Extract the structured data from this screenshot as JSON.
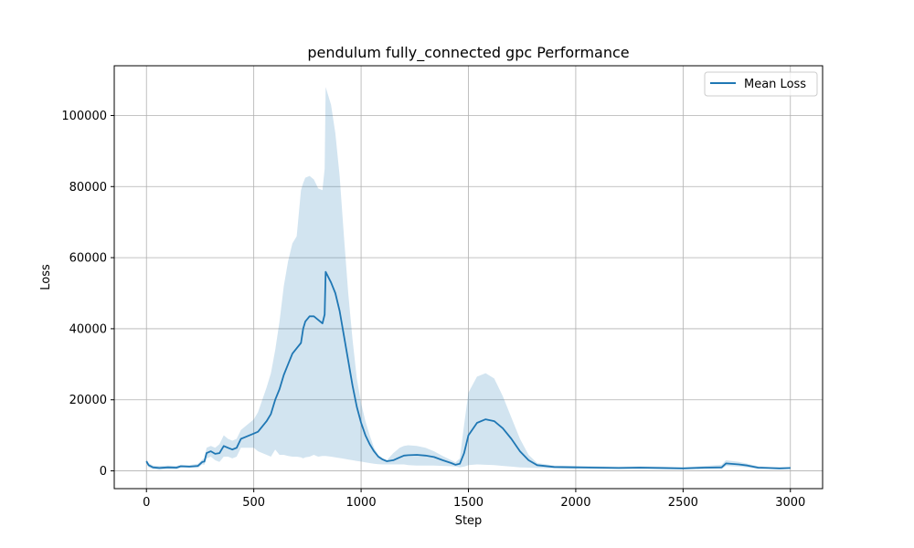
{
  "chart_data": {
    "type": "line",
    "title": "pendulum fully_connected gpc Performance",
    "xlabel": "Step",
    "ylabel": "Loss",
    "xlim": [
      -150,
      3150
    ],
    "ylim": [
      -5000,
      114000
    ],
    "xticks": [
      0,
      500,
      1000,
      1500,
      2000,
      2500,
      3000
    ],
    "yticks": [
      0,
      20000,
      40000,
      60000,
      80000,
      100000
    ],
    "grid": true,
    "legend_position": "top-right",
    "series": [
      {
        "name": "Mean Loss",
        "color": "#1f77b4",
        "x": [
          0,
          10,
          30,
          60,
          100,
          140,
          160,
          200,
          240,
          260,
          270,
          280,
          300,
          320,
          340,
          360,
          380,
          400,
          420,
          440,
          460,
          500,
          520,
          560,
          580,
          600,
          620,
          640,
          660,
          680,
          700,
          720,
          730,
          740,
          760,
          780,
          800,
          820,
          830,
          835,
          860,
          880,
          900,
          920,
          940,
          960,
          980,
          1000,
          1020,
          1040,
          1060,
          1080,
          1100,
          1120,
          1150,
          1180,
          1200,
          1220,
          1260,
          1300,
          1340,
          1380,
          1420,
          1440,
          1460,
          1480,
          1500,
          1540,
          1580,
          1620,
          1660,
          1700,
          1740,
          1780,
          1820,
          1900,
          2000,
          2100,
          2200,
          2300,
          2400,
          2500,
          2600,
          2680,
          2700,
          2760,
          2800,
          2850,
          2900,
          2950,
          3000
        ],
        "y": [
          2700,
          1600,
          1000,
          800,
          1000,
          900,
          1300,
          1200,
          1400,
          2500,
          2600,
          5000,
          5500,
          4800,
          5000,
          7000,
          6500,
          6000,
          6500,
          9000,
          9500,
          10500,
          11000,
          14000,
          16000,
          20000,
          23000,
          27000,
          30000,
          33000,
          34500,
          36000,
          40000,
          42000,
          43500,
          43500,
          42500,
          41500,
          44000,
          56000,
          53000,
          50000,
          45000,
          38000,
          31000,
          24000,
          18000,
          13500,
          10000,
          7500,
          5500,
          4000,
          3200,
          2700,
          3000,
          3800,
          4300,
          4400,
          4500,
          4300,
          3900,
          3000,
          2200,
          1700,
          2000,
          5000,
          10000,
          13500,
          14500,
          14000,
          12000,
          9000,
          5500,
          3000,
          1600,
          1100,
          1000,
          900,
          800,
          900,
          800,
          700,
          900,
          1000,
          2100,
          1800,
          1500,
          900,
          800,
          700,
          800
        ],
        "band_upper": [
          3200,
          2200,
          1500,
          1400,
          1500,
          1400,
          1700,
          1600,
          2000,
          3200,
          3500,
          6500,
          7000,
          6500,
          7500,
          10000,
          9000,
          8500,
          9000,
          11500,
          12500,
          14500,
          16500,
          23500,
          27500,
          34000,
          42000,
          52000,
          59000,
          64000,
          66000,
          79000,
          81000,
          82500,
          83000,
          82000,
          79500,
          79000,
          85000,
          108000,
          103000,
          95000,
          83000,
          66000,
          50000,
          37000,
          26000,
          19000,
          14000,
          10000,
          6500,
          4500,
          3600,
          3000,
          5000,
          6500,
          7000,
          7200,
          7000,
          6500,
          5500,
          4200,
          3000,
          2400,
          3500,
          13000,
          22000,
          26500,
          27500,
          26000,
          21000,
          15000,
          9000,
          4500,
          2200,
          1500,
          1400,
          1300,
          1200,
          1300,
          1200,
          1000,
          1400,
          1700,
          3000,
          2500,
          2000,
          1300,
          1100,
          1000,
          1100
        ],
        "band_lower": [
          2200,
          1000,
          500,
          300,
          500,
          400,
          900,
          800,
          800,
          1800,
          1700,
          3500,
          4000,
          3000,
          2500,
          4000,
          4000,
          3500,
          4000,
          6500,
          6500,
          6500,
          5500,
          4500,
          4000,
          6000,
          4500,
          4500,
          4200,
          4000,
          4000,
          3800,
          3500,
          3800,
          4000,
          4500,
          4000,
          4200,
          4200,
          4200,
          4000,
          3800,
          3600,
          3400,
          3200,
          3000,
          2800,
          2600,
          2400,
          2200,
          2000,
          1900,
          1800,
          1800,
          1800,
          1800,
          1800,
          1600,
          1500,
          1500,
          1500,
          1400,
          1300,
          1200,
          1000,
          1200,
          1600,
          1800,
          1700,
          1600,
          1400,
          1200,
          1000,
          900,
          800,
          700,
          600,
          500,
          500,
          500,
          400,
          400,
          500,
          500,
          1400,
          1200,
          1000,
          500,
          500,
          400,
          500
        ]
      }
    ]
  }
}
